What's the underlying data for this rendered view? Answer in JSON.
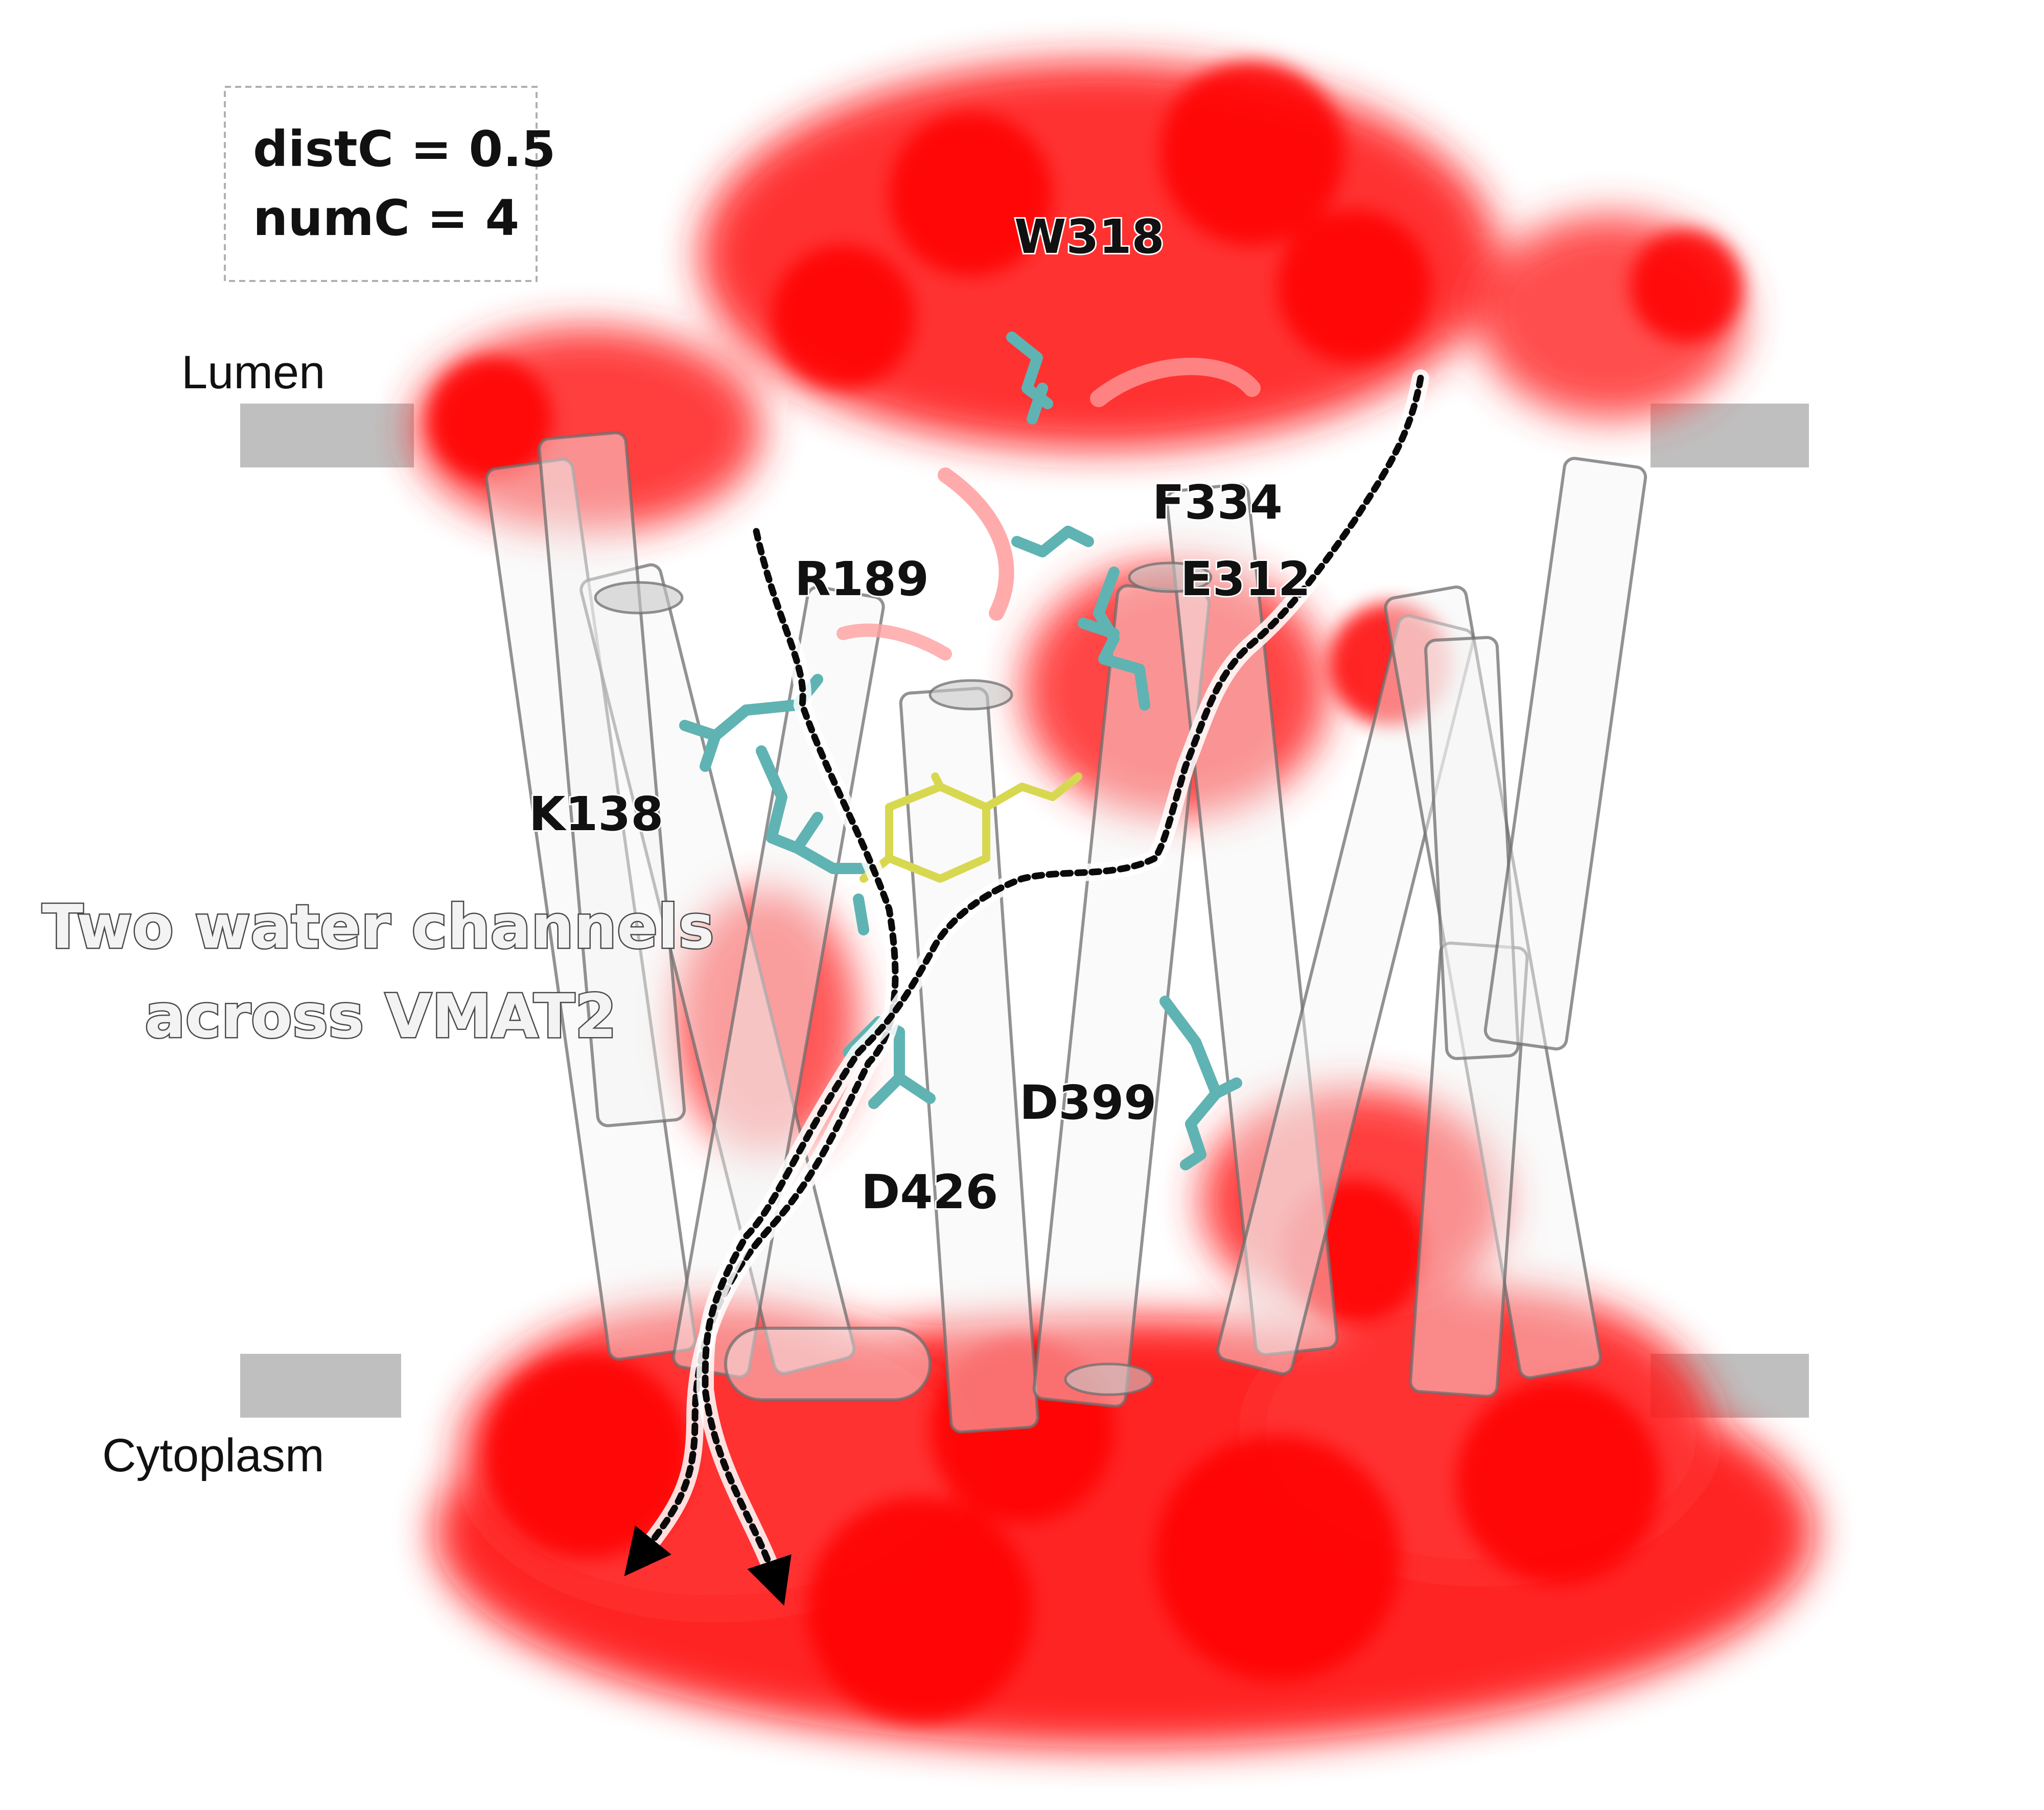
{
  "parameters": {
    "line1": "distC = 0.5",
    "line2": "numC = 4"
  },
  "membrane": {
    "top_label": "Lumen",
    "bottom_label": "Cytoplasm",
    "bar_color": "#bfbfbf"
  },
  "title": {
    "line1": "Two water channels",
    "line2": "across VMAT2"
  },
  "residues": {
    "w318": "W318",
    "f334": "F334",
    "r189": "R189",
    "e312": "E312",
    "k138": "K138",
    "d399": "D399",
    "d426": "D426"
  },
  "colors": {
    "water": "#ff0000",
    "residue_sticks": "#5fb3b3",
    "ligand": "#d8d850",
    "channel_path": "#000000"
  }
}
